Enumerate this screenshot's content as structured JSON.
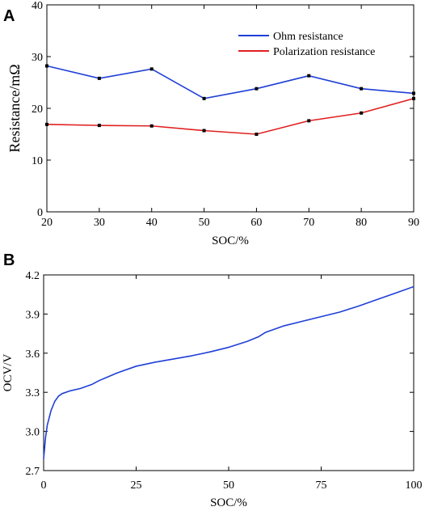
{
  "chart_data": [
    {
      "type": "line",
      "panel_label": "A",
      "title": "",
      "xlabel": "SOC/%",
      "ylabel": "Resistance/mΩ",
      "xlim": [
        20,
        90
      ],
      "ylim": [
        0,
        40
      ],
      "x_ticks": [
        "20",
        "30",
        "40",
        "50",
        "60",
        "70",
        "80",
        "90"
      ],
      "y_ticks": [
        "0",
        "10",
        "20",
        "30",
        "40"
      ],
      "legend_position": "top-right",
      "x": [
        20,
        30,
        40,
        50,
        60,
        70,
        80,
        90
      ],
      "series": [
        {
          "name": "Ohm resistance",
          "color": "#1f3fd6",
          "values": [
            28.2,
            25.8,
            27.6,
            21.9,
            23.8,
            26.3,
            23.8,
            22.9
          ]
        },
        {
          "name": "Polarization resistance",
          "color": "#e02020",
          "values": [
            16.9,
            16.7,
            16.6,
            15.7,
            15.0,
            17.6,
            19.1,
            21.9
          ]
        }
      ]
    },
    {
      "type": "line",
      "panel_label": "B",
      "title": "",
      "xlabel": "SOC/%",
      "ylabel": "OCV/V",
      "xlim": [
        0,
        100
      ],
      "ylim": [
        2.7,
        4.2
      ],
      "x_ticks": [
        "0",
        "25",
        "50",
        "75",
        "100"
      ],
      "y_ticks": [
        "2.7",
        "3.0",
        "3.3",
        "3.6",
        "3.9",
        "4.2"
      ],
      "series": [
        {
          "color": "#1f3fd6",
          "x": [
            0,
            0.5,
            1,
            2,
            3,
            4,
            5,
            7,
            10,
            13,
            15,
            20,
            25,
            30,
            35,
            40,
            45,
            50,
            55,
            58,
            60,
            65,
            70,
            75,
            80,
            85,
            90,
            95,
            100
          ],
          "values": [
            2.79,
            2.95,
            3.05,
            3.16,
            3.23,
            3.27,
            3.29,
            3.31,
            3.33,
            3.36,
            3.39,
            3.45,
            3.5,
            3.53,
            3.555,
            3.58,
            3.61,
            3.645,
            3.69,
            3.725,
            3.76,
            3.81,
            3.845,
            3.88,
            3.915,
            3.96,
            4.01,
            4.06,
            4.11
          ]
        }
      ]
    }
  ]
}
